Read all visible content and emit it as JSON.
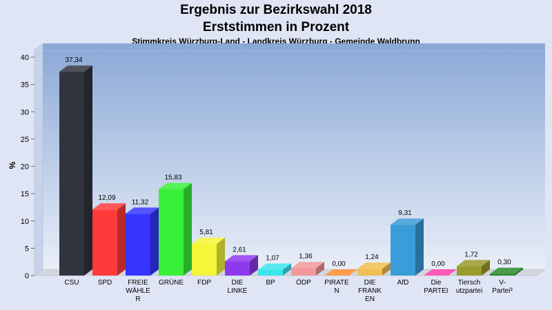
{
  "chart_data": {
    "type": "bar",
    "title": "Ergebnis zur Bezirkswahl 2018",
    "subtitle": "Erststimmen in Prozent",
    "subtitle2": "Stimmkreis Würzburg-Land - Landkreis Würzburg - Gemeinde Waldbrunn",
    "ylabel": "%",
    "ylim": [
      0,
      40
    ],
    "yticks": [
      0,
      5,
      10,
      15,
      20,
      25,
      30,
      35,
      40
    ],
    "grid": true,
    "categories": [
      [
        "CSU"
      ],
      [
        "SPD"
      ],
      [
        "FREIE",
        "WÄHLE",
        "R"
      ],
      [
        "GRÜNE"
      ],
      [
        "FDP"
      ],
      [
        "DIE",
        "LINKE"
      ],
      [
        "BP"
      ],
      [
        "ÖDP"
      ],
      [
        "PIRATE",
        "N"
      ],
      [
        "DIE",
        "FRANK",
        "EN"
      ],
      [
        "AfD"
      ],
      [
        "Die",
        "PARTEI"
      ],
      [
        "Tiersch",
        "utzpartei"
      ],
      [
        "V-",
        "Partei³"
      ]
    ],
    "values": [
      37.34,
      12.09,
      11.32,
      15.83,
      5.81,
      2.61,
      1.07,
      1.36,
      0.0,
      1.24,
      9.31,
      0.0,
      1.72,
      0.3
    ],
    "value_labels": [
      "37,34",
      "12,09",
      "11,32",
      "15,83",
      "5,81",
      "2,61",
      "1,07",
      "1,36",
      "0,00",
      "1,24",
      "9,31",
      "0,00",
      "1,72",
      "0,30"
    ],
    "colors": [
      "#30343e",
      "#ff3a3a",
      "#3535ff",
      "#38f038",
      "#f5f53a",
      "#8e38ee",
      "#3be5ee",
      "#f29898",
      "#ff8c2a",
      "#f0c050",
      "#3a9cd8",
      "#ff3aa8",
      "#9a9a2e",
      "#2a8a2a"
    ]
  }
}
